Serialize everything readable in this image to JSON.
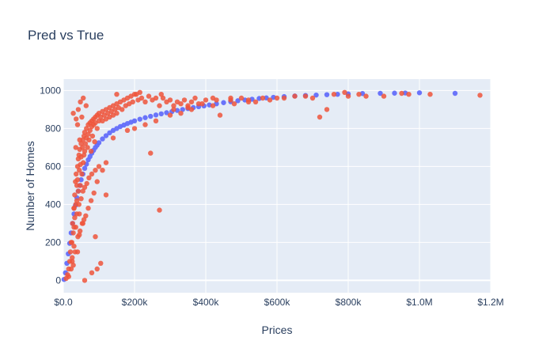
{
  "chart_data": {
    "type": "scatter",
    "title": "Pred vs True",
    "xlabel": "Prices",
    "ylabel": "Number of Homes",
    "xlim": [
      0,
      1200000
    ],
    "ylim": [
      -65,
      1060
    ],
    "x_ticks": [
      0,
      200000,
      400000,
      600000,
      800000,
      1000000,
      1200000
    ],
    "x_tick_labels": [
      "$0.0",
      "$200k",
      "$400k",
      "$600k",
      "$800k",
      "$1.0M",
      "$1.2M"
    ],
    "y_ticks": [
      0,
      200,
      400,
      600,
      800,
      1000
    ],
    "y_tick_labels": [
      "0",
      "200",
      "400",
      "600",
      "800",
      "1000"
    ],
    "grid": true,
    "legend": "none",
    "colors": {
      "plot_bg": "#e5ecf6",
      "grid": "#ffffff",
      "pred": "#636efa",
      "true": "#ef553b",
      "text": "#2a3f5f"
    },
    "series": [
      {
        "role": "pred",
        "x": [
          2000,
          6000,
          10000,
          14000,
          18000,
          22000,
          26000,
          30000,
          34000,
          38000,
          42000,
          46000,
          50000,
          55000,
          60000,
          65000,
          70000,
          75000,
          80000,
          85000,
          90000,
          95000,
          100000,
          110000,
          120000,
          130000,
          140000,
          150000,
          160000,
          170000,
          180000,
          190000,
          200000,
          215000,
          230000,
          245000,
          260000,
          275000,
          290000,
          305000,
          320000,
          335000,
          350000,
          365000,
          380000,
          395000,
          410000,
          430000,
          450000,
          470000,
          490000,
          510000,
          530000,
          550000,
          570000,
          590000,
          620000,
          650000,
          680000,
          710000,
          740000,
          770000,
          800000,
          840000,
          890000,
          930000,
          960000,
          1000000,
          1100000
        ],
        "y": [
          5,
          40,
          90,
          140,
          195,
          250,
          300,
          350,
          395,
          435,
          470,
          500,
          530,
          560,
          590,
          612,
          635,
          652,
          670,
          685,
          700,
          712,
          725,
          745,
          762,
          777,
          790,
          800,
          810,
          818,
          826,
          833,
          840,
          849,
          857,
          864,
          871,
          877,
          883,
          889,
          895,
          900,
          905,
          910,
          915,
          919,
          924,
          930,
          936,
          941,
          946,
          950,
          954,
          958,
          961,
          964,
          968,
          971,
          974,
          976,
          978,
          980,
          982,
          984,
          985,
          986,
          987,
          988,
          985
        ]
      },
      {
        "role": "true",
        "x": [
          8000,
          12000,
          15000,
          18000,
          20000,
          22000,
          24000,
          25000,
          26000,
          28000,
          28000,
          30000,
          30000,
          32000,
          32000,
          34000,
          35000,
          35000,
          36000,
          38000,
          38000,
          40000,
          40000,
          42000,
          42000,
          44000,
          45000,
          45000,
          46000,
          48000,
          48000,
          50000,
          50000,
          52000,
          54000,
          55000,
          56000,
          58000,
          60000,
          60000,
          62000,
          65000,
          65000,
          68000,
          70000,
          70000,
          72000,
          75000,
          75000,
          78000,
          80000,
          80000,
          82000,
          85000,
          85000,
          88000,
          90000,
          90000,
          95000,
          95000,
          100000,
          100000,
          105000,
          110000,
          110000,
          115000,
          120000,
          120000,
          125000,
          130000,
          130000,
          135000,
          140000,
          140000,
          145000,
          150000,
          150000,
          155000,
          160000,
          165000,
          170000,
          175000,
          180000,
          185000,
          190000,
          195000,
          200000,
          210000,
          220000,
          230000,
          240000,
          245000,
          250000,
          260000,
          270000,
          280000,
          290000,
          300000,
          310000,
          320000,
          330000,
          340000,
          350000,
          360000,
          370000,
          380000,
          400000,
          420000,
          440000,
          470000,
          500000,
          520000,
          540000,
          560000,
          600000,
          650000,
          700000,
          720000,
          740000,
          760000,
          790000,
          800000,
          830000,
          850000,
          900000,
          950000,
          970000,
          1030000,
          1170000,
          22000,
          30000,
          38000,
          44000,
          50000,
          55000,
          60000,
          66000,
          72000,
          80000,
          90000,
          100000,
          25000,
          33000,
          41000,
          47000,
          53000,
          58000,
          63000,
          70000,
          78000,
          86000,
          95000,
          110000,
          120000,
          36000,
          42000,
          48000,
          56000,
          64000,
          28000,
          40000,
          52000,
          35000,
          46000,
          58000,
          45000,
          55000,
          150000,
          90000,
          105000,
          120000,
          140000,
          30000,
          40000,
          15000,
          60000,
          80000,
          95000,
          270000,
          180000,
          200000,
          230000,
          260000,
          300000,
          330000,
          360000,
          420000,
          480000,
          520000,
          580000,
          620000,
          680000,
          205000,
          215000,
          275000,
          310000,
          350000,
          390000,
          430000,
          470000
        ],
        "y": [
          10,
          30,
          60,
          100,
          150,
          60,
          200,
          120,
          300,
          250,
          80,
          380,
          180,
          450,
          330,
          520,
          400,
          280,
          560,
          500,
          420,
          600,
          530,
          640,
          470,
          660,
          580,
          350,
          690,
          610,
          500,
          720,
          650,
          560,
          700,
          740,
          620,
          760,
          780,
          680,
          720,
          800,
          750,
          700,
          820,
          770,
          740,
          830,
          790,
          680,
          840,
          810,
          760,
          850,
          820,
          730,
          860,
          830,
          870,
          800,
          880,
          840,
          860,
          890,
          840,
          870,
          900,
          850,
          880,
          910,
          860,
          890,
          920,
          870,
          900,
          930,
          880,
          910,
          940,
          900,
          950,
          920,
          960,
          930,
          970,
          940,
          980,
          950,
          960,
          940,
          970,
          670,
          950,
          960,
          370,
          960,
          940,
          950,
          920,
          940,
          930,
          950,
          920,
          940,
          960,
          930,
          950,
          960,
          870,
          950,
          960,
          950,
          940,
          960,
          960,
          970,
          960,
          860,
          900,
          980,
          990,
          970,
          980,
          970,
          970,
          985,
          980,
          980,
          975,
          200,
          280,
          350,
          400,
          430,
          470,
          490,
          510,
          540,
          560,
          580,
          600,
          100,
          150,
          230,
          260,
          300,
          320,
          340,
          380,
          420,
          460,
          520,
          580,
          620,
          850,
          900,
          940,
          960,
          920,
          880,
          820,
          860,
          700,
          740,
          660,
          240,
          300,
          980,
          230,
          90,
          450,
          750,
          380,
          150,
          20,
          0,
          40,
          60,
          920,
          790,
          800,
          820,
          840,
          870,
          880,
          900,
          920,
          930,
          940,
          950,
          960,
          970,
          980,
          990,
          980,
          900,
          910,
          930,
          950,
          960
        ]
      }
    ]
  }
}
